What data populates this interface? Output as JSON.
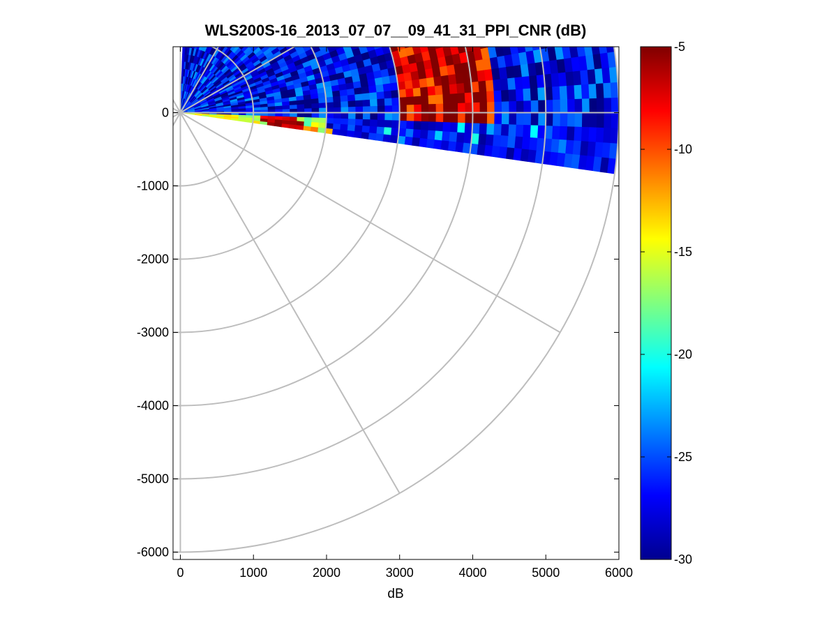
{
  "chart_data": {
    "type": "heatmap",
    "subtype": "polar-ppi-scan",
    "title": "WLS200S-16_2013_07_07__09_41_31_PPI_CNR (dB)",
    "xlabel": "dB",
    "ylabel": "",
    "xlim": [
      -100,
      6000
    ],
    "ylim": [
      -6100,
      900
    ],
    "x_ticks": [
      0,
      1000,
      2000,
      3000,
      4000,
      5000,
      6000
    ],
    "x_tick_labels": [
      "0",
      "1000",
      "2000",
      "3000",
      "4000",
      "5000",
      "6000"
    ],
    "y_ticks": [
      0,
      -1000,
      -2000,
      -3000,
      -4000,
      -5000,
      -6000
    ],
    "y_tick_labels": [
      "0",
      "-1000",
      "-2000",
      "-3000",
      "-4000",
      "-5000",
      "-6000"
    ],
    "colorbar": {
      "colormap": "jet",
      "range": [
        -30,
        -5
      ],
      "ticks": [
        -5,
        -10,
        -15,
        -20,
        -25,
        -30
      ],
      "tick_labels": [
        "-5",
        "-10",
        "-15",
        "-20",
        "-25",
        "-30"
      ]
    },
    "scan": {
      "max_range": 6000,
      "range_gate": 100,
      "azimuth_start_deg": 82,
      "azimuth_end_deg": 178,
      "azimuth_step_deg": 2
    },
    "polar_grid": {
      "ring_radii": [
        1000,
        2000,
        3000,
        4000,
        5000,
        6000
      ],
      "spoke_angles_deg": [
        0,
        30,
        60,
        90,
        120,
        150,
        180
      ]
    },
    "cnr_regions_db": {
      "near_field": -15,
      "strong_echo_ring": -5,
      "far_background": -27,
      "northern_streak": -7,
      "cluster_1": -8,
      "cluster_2": -17
    }
  }
}
